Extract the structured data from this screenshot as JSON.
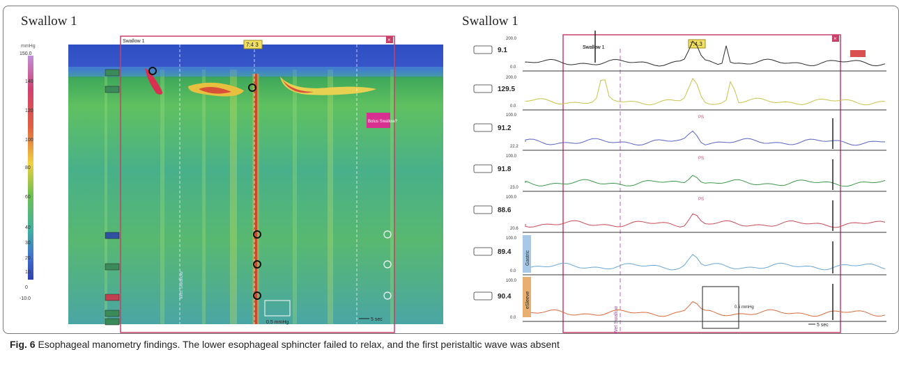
{
  "left_panel": {
    "title": "Swallow 1",
    "unit_label": "mmHg",
    "scale_ticks": [
      "150.0",
      "140",
      "120",
      "100",
      "80",
      "60",
      "40",
      "30",
      "20",
      "10",
      "0",
      "-10.0"
    ],
    "window_label": "Swallow 1",
    "time_box": "7:4.3",
    "event_label": "Bolus Swallow?",
    "scale_bar_label": "0.5 mmHg",
    "time_scale": "5 sec",
    "vertical_label": "Wet Swallow"
  },
  "right_panel": {
    "title": "Swallow 1",
    "window_label": "Swallow 1",
    "time_box": "7:4.3",
    "scale_bar_label": "0.5 mmHg",
    "time_scale": "5 sec",
    "vertical_label": "Wet Swallow",
    "channel_labels": [
      "Gastric",
      "eSleeve"
    ],
    "peak_tag": "PS",
    "channels": [
      {
        "value": "9.1",
        "top": "200.0",
        "bottom": "0.0",
        "color": "#2b2b2b"
      },
      {
        "value": "129.5",
        "top": "200.0",
        "bottom": "0.0",
        "color": "#c9c24a"
      },
      {
        "value": "91.2",
        "top": "100.0",
        "bottom": "22.2",
        "color": "#5a63c4"
      },
      {
        "value": "91.8",
        "top": "100.0",
        "bottom": "23.0",
        "color": "#3c9a4a"
      },
      {
        "value": "88.6",
        "top": "100.0",
        "bottom": "20.6",
        "color": "#c84a55"
      },
      {
        "value": "89.4",
        "top": "100.0",
        "bottom": "0.0",
        "color": "#6aa8d8"
      },
      {
        "value": "90.4",
        "top": "100.0",
        "bottom": "0.0",
        "color": "#d86a3a"
      }
    ]
  },
  "caption": {
    "label": "Fig. 6",
    "text": " Esophageal manometry findings. The lower esophageal sphincter failed to relax, and the first peristaltic wave was absent"
  }
}
